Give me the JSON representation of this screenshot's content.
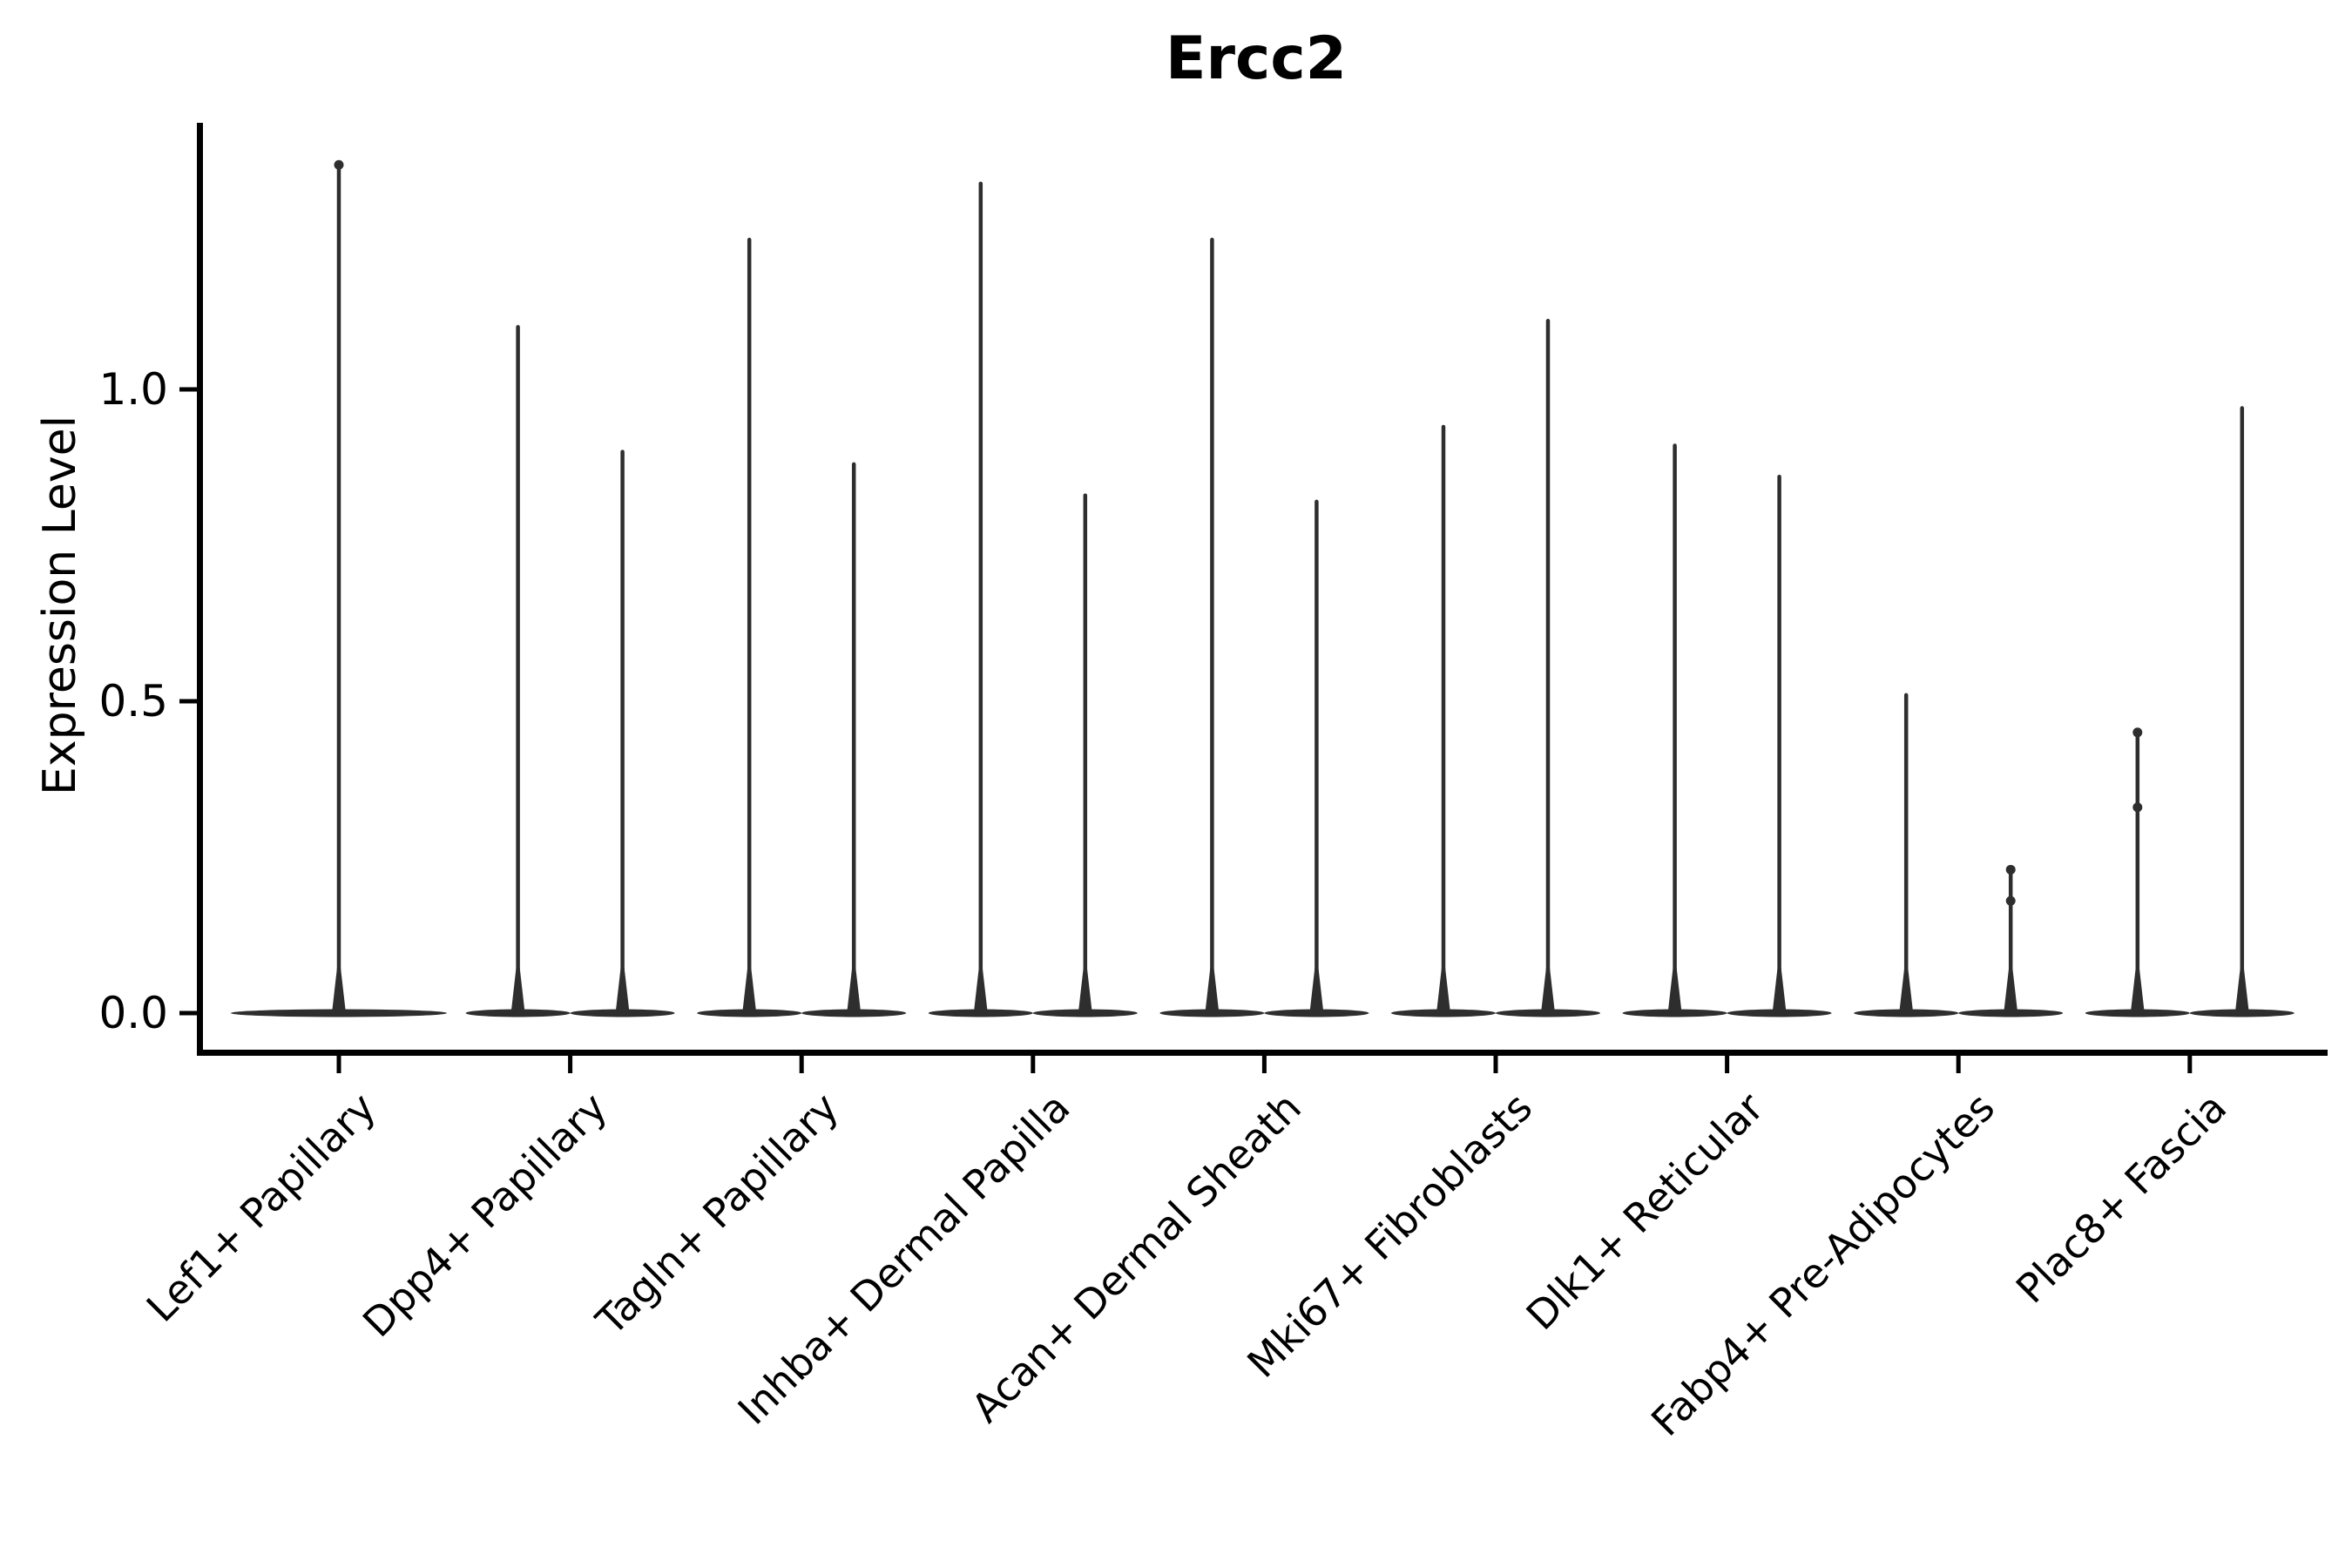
{
  "figure": {
    "title": "Ercc2",
    "colors": {
      "background": "#ffffff",
      "axis": "#000000",
      "text": "#000000",
      "violin": "#2e2e2e"
    }
  },
  "chart_data": {
    "type": "violin",
    "title": "Ercc2",
    "xlabel": "",
    "ylabel": "Expression Level",
    "ylim": [
      0,
      1.43
    ],
    "grid": false,
    "legend": false,
    "yticks": [
      0.0,
      0.5,
      1.0
    ],
    "ytick_labels": [
      "0.0",
      "0.5",
      "1.0"
    ],
    "categories": [
      {
        "label": "Lef1+ Papillary",
        "violins": [
          {
            "max": 1.36,
            "points": [
              1.36
            ]
          }
        ]
      },
      {
        "label": "Dpp4+ Papillary",
        "violins": [
          {
            "max": 1.1
          },
          {
            "max": 0.9
          }
        ]
      },
      {
        "label": "Tagln+ Papillary",
        "violins": [
          {
            "max": 1.24
          },
          {
            "max": 0.88
          }
        ]
      },
      {
        "label": "Inhba+ Dermal Papilla",
        "violins": [
          {
            "max": 1.33
          },
          {
            "max": 0.83
          }
        ]
      },
      {
        "label": "Acan+ Dermal Sheath",
        "violins": [
          {
            "max": 1.24
          },
          {
            "max": 0.82
          }
        ]
      },
      {
        "label": "Mki67+ Fibroblasts",
        "violins": [
          {
            "max": 0.94
          },
          {
            "max": 1.11
          }
        ]
      },
      {
        "label": "Dlk1+ Reticular",
        "violins": [
          {
            "max": 0.91
          },
          {
            "max": 0.86
          }
        ]
      },
      {
        "label": "Fabp4+ Pre-Adipocytes",
        "violins": [
          {
            "max": 0.51
          },
          {
            "max": 0.23,
            "points": [
              0.23,
              0.18
            ]
          }
        ]
      },
      {
        "label": "Plac8+ Fascia",
        "violins": [
          {
            "max": 0.45,
            "points": [
              0.45,
              0.33
            ]
          },
          {
            "max": 0.97
          }
        ]
      }
    ]
  }
}
